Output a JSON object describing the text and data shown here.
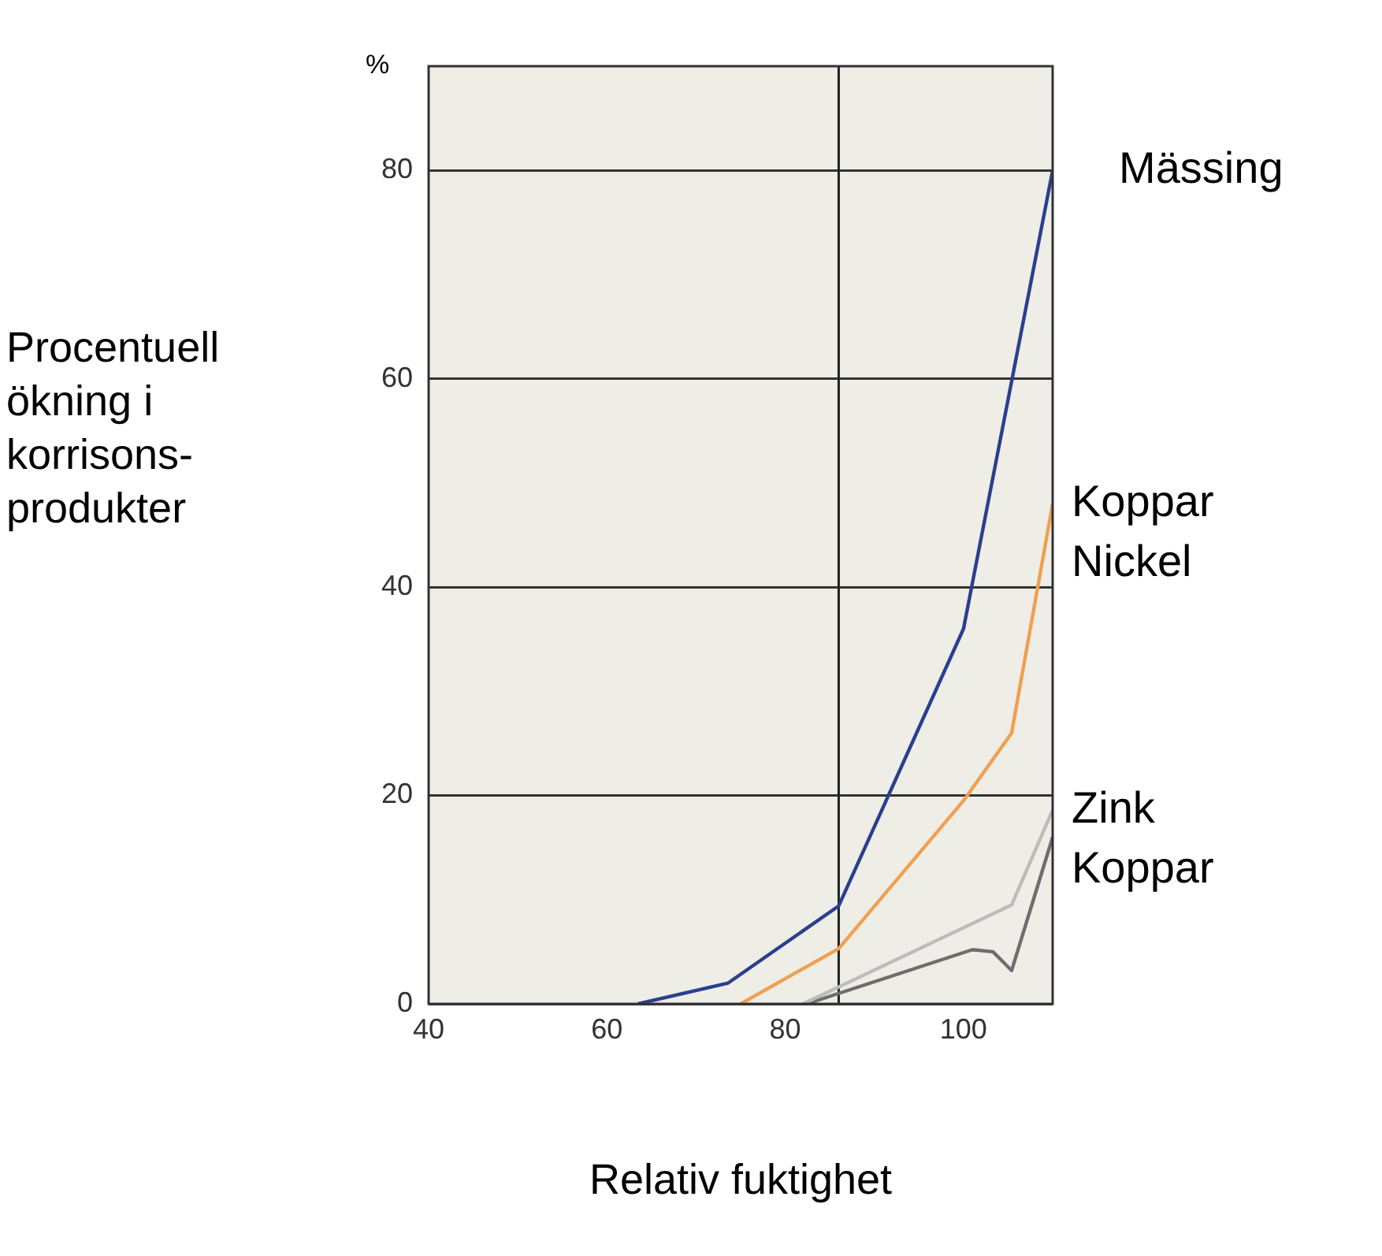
{
  "chart_data": {
    "type": "line",
    "xlabel": "Relativ fuktighet",
    "ylabel": "Procentuell ökning i korrisons-produkter",
    "annotations": [
      "%"
    ],
    "xlim": [
      40,
      110
    ],
    "xticks": [
      40,
      60,
      80,
      100
    ],
    "ylim": [
      0,
      90
    ],
    "yticks": [
      0,
      20,
      40,
      60,
      80
    ],
    "grid": "y",
    "legend": false,
    "marker": "none",
    "ref_lines": [
      {
        "axis": "x",
        "value": 86,
        "color": "#222222"
      }
    ],
    "series": [
      {
        "name": "Mässing",
        "color": "#2b3f8f",
        "x": [
          63.5,
          73.6,
          86,
          100,
          110
        ],
        "values": [
          0,
          2,
          9.4,
          36,
          80
        ]
      },
      {
        "name": "Koppar Nickel",
        "color": "#f0a050",
        "x": [
          75,
          86,
          100,
          105.4,
          110
        ],
        "values": [
          0,
          5.3,
          19.5,
          26,
          48
        ]
      },
      {
        "name": "Zink",
        "color": "#bcbcbc",
        "x": [
          82,
          105.4,
          110
        ],
        "values": [
          0,
          9.5,
          18.6
        ]
      },
      {
        "name": "Koppar",
        "color": "#6e6e6e",
        "x": [
          82.4,
          101,
          103.3,
          105.4,
          110
        ],
        "values": [
          0,
          5.2,
          5,
          3.2,
          16
        ]
      }
    ]
  }
}
